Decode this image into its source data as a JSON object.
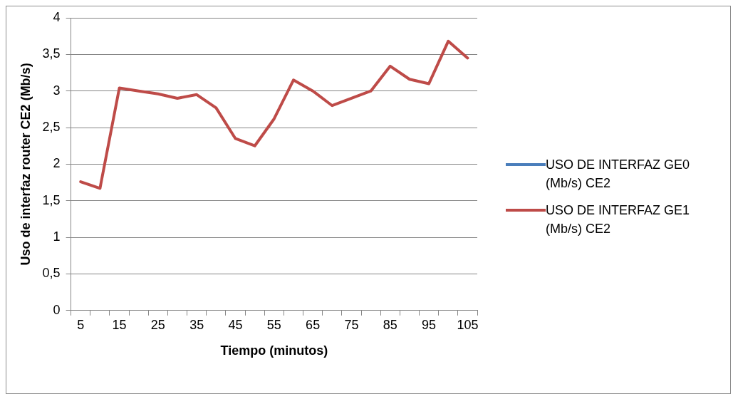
{
  "chart_data": {
    "type": "line",
    "xlabel": "Tiempo (minutos)",
    "ylabel": "Uso de interfaz router CE2 (Mb/s)",
    "categories": [
      "5",
      null,
      "15",
      null,
      "25",
      null,
      "35",
      null,
      "45",
      null,
      "55",
      null,
      "65",
      null,
      "75",
      null,
      "85",
      null,
      "95",
      null,
      "105"
    ],
    "series": [
      {
        "name": "USO DE INTERFAZ GE0 (Mb/s) CE2",
        "color": "#4a7ebb",
        "values": [
          null,
          null,
          null,
          null,
          null,
          null,
          null,
          null,
          null,
          null,
          null,
          null,
          null,
          null,
          null,
          null,
          null,
          null,
          null,
          null,
          null
        ]
      },
      {
        "name": "USO DE INTERFAZ GE1 (Mb/s) CE2",
        "color": "#be4b48",
        "values": [
          1.76,
          1.67,
          3.04,
          3.0,
          2.96,
          2.9,
          2.95,
          2.77,
          2.35,
          2.25,
          2.62,
          3.15,
          3.0,
          2.8,
          2.9,
          3.0,
          3.34,
          3.16,
          3.1,
          3.68,
          3.45
        ]
      }
    ],
    "ylim": [
      0,
      4
    ],
    "yticks": [
      0,
      {
        "value": 0.5,
        "label": "0,5"
      },
      1,
      {
        "value": 1.5,
        "label": "1,5"
      },
      2,
      {
        "value": 2.5,
        "label": "2,5"
      },
      3,
      {
        "value": 3.5,
        "label": "3,5"
      },
      4
    ],
    "grid": "y",
    "legend": "right",
    "marker": "none",
    "line_style": "solid"
  }
}
